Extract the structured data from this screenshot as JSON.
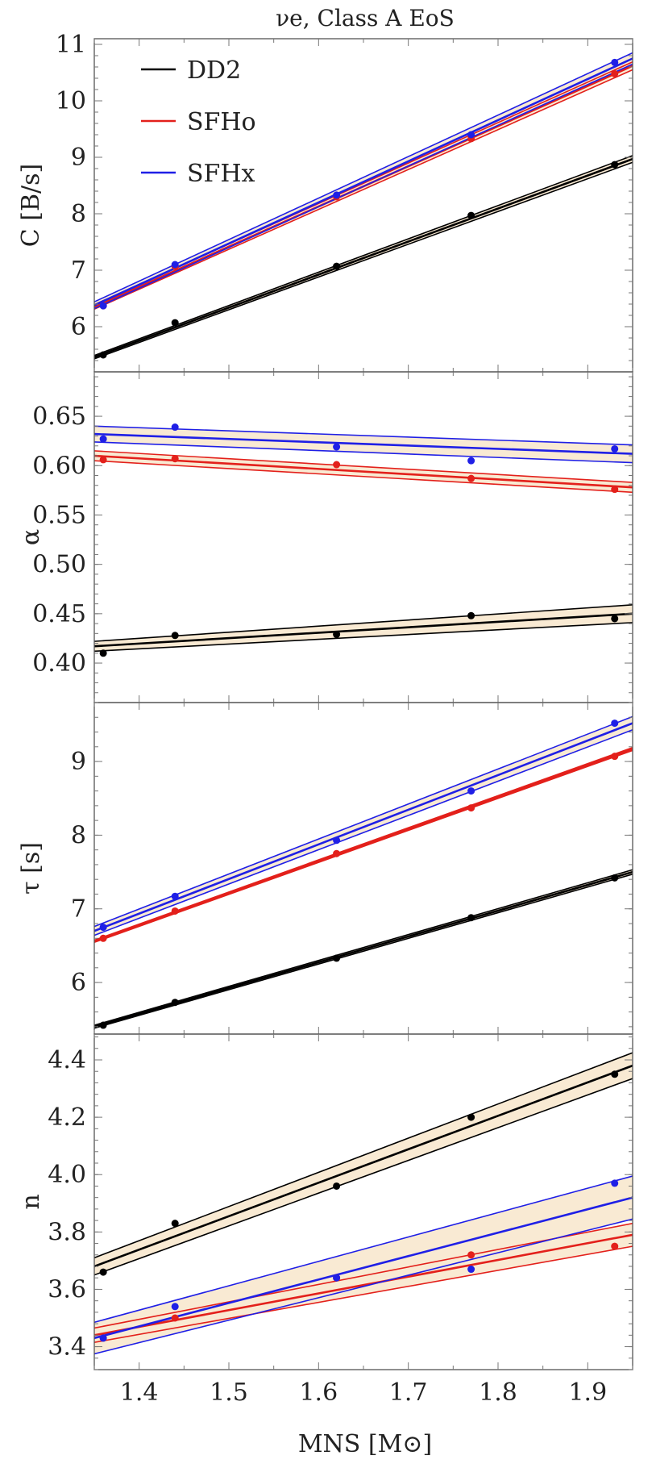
{
  "chart_data": [
    {
      "type": "scatter",
      "title": "νe, Class A EoS",
      "xlabel": "MNS [M⊙]",
      "ylabel": "C [B/s]",
      "xlim": [
        1.35,
        1.95
      ],
      "ylim": [
        5.2,
        11.1
      ],
      "yticks": [
        6,
        7,
        8,
        9,
        10,
        11
      ],
      "yticklabels": [
        "6",
        "7",
        "8",
        "9",
        "10",
        "11"
      ],
      "legend": {
        "position": "top-left",
        "entries": [
          "DD2",
          "SFHo",
          "SFHx"
        ]
      },
      "series": [
        {
          "name": "DD2",
          "color": "#000000",
          "x": [
            1.36,
            1.44,
            1.62,
            1.77,
            1.93
          ],
          "y": [
            5.5,
            6.07,
            7.07,
            7.97,
            8.87
          ],
          "fit": [
            [
              1.35,
              5.46
            ],
            [
              1.95,
              8.97
            ]
          ],
          "band": [
            0.03,
            0.06
          ]
        },
        {
          "name": "SFHo",
          "color": "#e3201b",
          "x": [
            1.36,
            1.44,
            1.62,
            1.77,
            1.93
          ],
          "y": [
            6.37,
            7.07,
            8.3,
            9.33,
            10.48
          ],
          "fit": [
            [
              1.35,
              6.35
            ],
            [
              1.95,
              10.62
            ]
          ],
          "band": [
            0.04,
            0.07
          ]
        },
        {
          "name": "SFHx",
          "color": "#1f1fe6",
          "x": [
            1.36,
            1.44,
            1.62,
            1.77,
            1.93
          ],
          "y": [
            6.37,
            7.1,
            8.33,
            9.4,
            10.68
          ],
          "fit": [
            [
              1.35,
              6.38
            ],
            [
              1.95,
              10.75
            ]
          ],
          "band": [
            0.06,
            0.1
          ]
        }
      ]
    },
    {
      "type": "scatter",
      "xlabel": "MNS [M⊙]",
      "ylabel": "α",
      "xlim": [
        1.35,
        1.95
      ],
      "ylim": [
        0.36,
        0.695
      ],
      "yticks": [
        0.4,
        0.45,
        0.5,
        0.55,
        0.6,
        0.65
      ],
      "yticklabels": [
        "0.40",
        "0.45",
        "0.50",
        "0.55",
        "0.60",
        "0.65"
      ],
      "series": [
        {
          "name": "DD2",
          "color": "#000000",
          "x": [
            1.36,
            1.44,
            1.62,
            1.77,
            1.93
          ],
          "y": [
            0.41,
            0.428,
            0.429,
            0.448,
            0.445
          ],
          "fit": [
            [
              1.35,
              0.417
            ],
            [
              1.95,
              0.45
            ]
          ],
          "band": [
            0.005,
            0.009
          ]
        },
        {
          "name": "SFHo",
          "color": "#e3201b",
          "x": [
            1.36,
            1.44,
            1.62,
            1.77,
            1.93
          ],
          "y": [
            0.606,
            0.607,
            0.601,
            0.587,
            0.576
          ],
          "fit": [
            [
              1.35,
              0.61
            ],
            [
              1.95,
              0.578
            ]
          ],
          "band": [
            0.005,
            0.005
          ]
        },
        {
          "name": "SFHx",
          "color": "#1f1fe6",
          "x": [
            1.36,
            1.44,
            1.62,
            1.77,
            1.93
          ],
          "y": [
            0.627,
            0.639,
            0.619,
            0.605,
            0.617
          ],
          "fit": [
            [
              1.35,
              0.632
            ],
            [
              1.95,
              0.612
            ]
          ],
          "band": [
            0.008,
            0.009
          ]
        }
      ]
    },
    {
      "type": "scatter",
      "xlabel": "MNS [M⊙]",
      "ylabel": "τ [s]",
      "xlim": [
        1.35,
        1.95
      ],
      "ylim": [
        5.3,
        9.8
      ],
      "yticks": [
        6,
        7,
        8,
        9
      ],
      "yticklabels": [
        "6",
        "7",
        "8",
        "9"
      ],
      "series": [
        {
          "name": "DD2",
          "color": "#000000",
          "x": [
            1.36,
            1.44,
            1.62,
            1.77,
            1.93
          ],
          "y": [
            5.42,
            5.73,
            6.33,
            6.88,
            7.42
          ],
          "fit": [
            [
              1.35,
              5.4
            ],
            [
              1.95,
              7.5
            ]
          ],
          "band": [
            0.02,
            0.03
          ]
        },
        {
          "name": "SFHo",
          "color": "#e3201b",
          "x": [
            1.36,
            1.44,
            1.62,
            1.77,
            1.93
          ],
          "y": [
            6.6,
            6.97,
            7.75,
            8.37,
            9.07
          ],
          "fit": [
            [
              1.35,
              6.56
            ],
            [
              1.95,
              9.17
            ]
          ],
          "band": [
            0.015,
            0.02
          ]
        },
        {
          "name": "SFHx",
          "color": "#1f1fe6",
          "x": [
            1.36,
            1.44,
            1.62,
            1.77,
            1.93
          ],
          "y": [
            6.75,
            7.17,
            7.93,
            8.6,
            9.52
          ],
          "fit": [
            [
              1.35,
              6.7
            ],
            [
              1.95,
              9.52
            ]
          ],
          "band": [
            0.06,
            0.09
          ]
        }
      ]
    },
    {
      "type": "scatter",
      "xlabel": "MNS [M⊙]",
      "ylabel": "n",
      "xlim": [
        1.35,
        1.95
      ],
      "ylim": [
        3.32,
        4.49
      ],
      "yticks": [
        3.4,
        3.6,
        3.8,
        4.0,
        4.2,
        4.4
      ],
      "yticklabels": [
        "3.4",
        "3.6",
        "3.8",
        "4.0",
        "4.2",
        "4.4"
      ],
      "xticks": [
        1.4,
        1.5,
        1.6,
        1.7,
        1.8,
        1.9
      ],
      "xticklabels": [
        "1.4",
        "1.5",
        "1.6",
        "1.7",
        "1.8",
        "1.9"
      ],
      "series": [
        {
          "name": "DD2",
          "color": "#000000",
          "x": [
            1.36,
            1.44,
            1.62,
            1.77,
            1.93
          ],
          "y": [
            3.66,
            3.83,
            3.96,
            4.2,
            4.35
          ],
          "fit": [
            [
              1.35,
              3.68
            ],
            [
              1.95,
              4.38
            ]
          ],
          "band": [
            0.03,
            0.045
          ]
        },
        {
          "name": "SFHo",
          "color": "#e3201b",
          "x": [
            1.36,
            1.44,
            1.62,
            1.77,
            1.93
          ],
          "y": [
            3.43,
            3.5,
            3.64,
            3.72,
            3.75
          ],
          "fit": [
            [
              1.35,
              3.44
            ],
            [
              1.95,
              3.79
            ]
          ],
          "band": [
            0.025,
            0.04
          ]
        },
        {
          "name": "SFHx",
          "color": "#1f1fe6",
          "x": [
            1.36,
            1.44,
            1.62,
            1.77,
            1.93
          ],
          "y": [
            3.43,
            3.54,
            3.64,
            3.67,
            3.97
          ],
          "fit": [
            [
              1.35,
              3.43
            ],
            [
              1.95,
              3.92
            ]
          ],
          "band": [
            0.055,
            0.075
          ]
        }
      ]
    }
  ]
}
